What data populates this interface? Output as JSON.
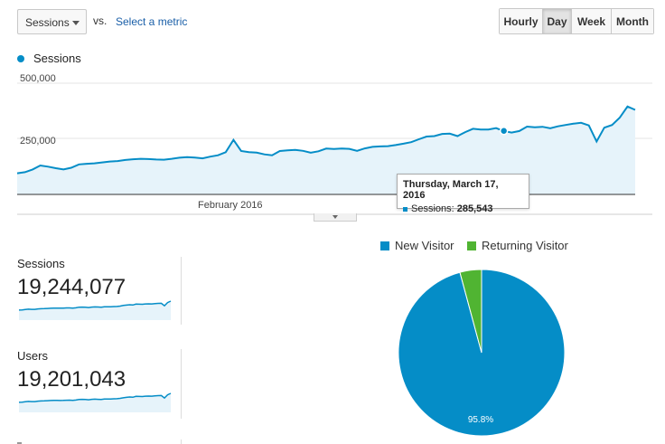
{
  "controls": {
    "metric_select": "Sessions",
    "vs_label": "vs.",
    "select_metric_link": "Select a metric",
    "granularity": [
      {
        "label": "Hourly",
        "active": false
      },
      {
        "label": "Day",
        "active": true
      },
      {
        "label": "Week",
        "active": false
      },
      {
        "label": "Month",
        "active": false
      }
    ]
  },
  "colors": {
    "sessions": "#058dc7",
    "returning": "#50b432",
    "area": "#e6f3fa"
  },
  "chart_data": [
    {
      "type": "area",
      "legend": [
        "Sessions"
      ],
      "y_ticks": [
        "500,000",
        "250,000"
      ],
      "ylim": [
        0,
        500000
      ],
      "x_tick_label": "February 2016",
      "series": [
        {
          "name": "Sessions",
          "values": [
            95000,
            100000,
            112000,
            130000,
            125000,
            118000,
            112000,
            120000,
            135000,
            138000,
            140000,
            144000,
            148000,
            150000,
            155000,
            158000,
            160000,
            159000,
            157000,
            156000,
            160000,
            165000,
            168000,
            166000,
            162000,
            170000,
            176000,
            190000,
            245000,
            195000,
            190000,
            188000,
            180000,
            176000,
            195000,
            198000,
            200000,
            196000,
            188000,
            194000,
            206000,
            204000,
            206000,
            205000,
            196000,
            207000,
            214000,
            216000,
            217000,
            222000,
            228000,
            235000,
            248000,
            260000,
            262000,
            272000,
            273000,
            262000,
            280000,
            295000,
            292000,
            292000,
            298000,
            285000,
            278000,
            285000,
            305000,
            302000,
            304000,
            297000,
            306000,
            312000,
            318000,
            322000,
            310000,
            238000,
            300000,
            312000,
            345000,
            395000,
            380000
          ]
        }
      ],
      "tooltip": {
        "date": "Thursday, March 17, 2016",
        "series": "Sessions",
        "value": "285,543",
        "value_num": 285543
      }
    },
    {
      "type": "pie",
      "categories": [
        "New Visitor",
        "Returning Visitor"
      ],
      "values": [
        95.8,
        4.2
      ],
      "slice_labels": [
        "95.8%"
      ]
    }
  ],
  "scorecards": [
    {
      "label": "Sessions",
      "value": "19,244,077",
      "sparkline": [
        95,
        100,
        112,
        125,
        118,
        120,
        135,
        140,
        144,
        150,
        155,
        158,
        159,
        157,
        160,
        166,
        168,
        162,
        170,
        190,
        195,
        188,
        180,
        195,
        200,
        196,
        190,
        205,
        205,
        207,
        214,
        217,
        228,
        248,
        262,
        273,
        265,
        295,
        292,
        290,
        300,
        305,
        302,
        310,
        318,
        322,
        240,
        345,
        395
      ]
    },
    {
      "label": "Users",
      "value": "19,201,043",
      "sparkline": [
        94,
        99,
        111,
        124,
        117,
        119,
        134,
        139,
        143,
        149,
        154,
        157,
        158,
        156,
        159,
        165,
        167,
        161,
        169,
        189,
        194,
        187,
        179,
        194,
        199,
        195,
        189,
        204,
        204,
        206,
        213,
        216,
        227,
        247,
        261,
        272,
        264,
        294,
        291,
        289,
        299,
        304,
        301,
        309,
        317,
        321,
        239,
        344,
        394
      ]
    }
  ]
}
